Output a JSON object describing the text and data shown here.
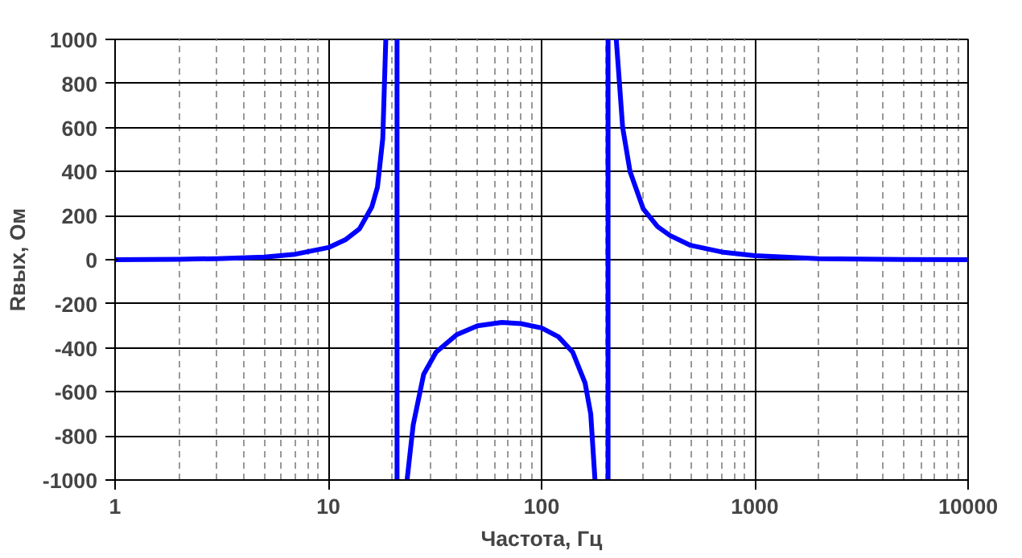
{
  "chart_data": {
    "type": "line",
    "xlabel": "Частота, Гц",
    "ylabel": "Rвых, Ом",
    "log": "x",
    "grid": true,
    "marker": "none",
    "line_style": "solid",
    "xlim": [
      1,
      10000
    ],
    "xticks": [
      1,
      10,
      100,
      1000,
      10000
    ],
    "ylim": [
      -1000,
      1000
    ],
    "yticks": [
      -1000,
      -800,
      -600,
      -400,
      -200,
      0,
      200,
      400,
      600,
      800,
      1000
    ],
    "series": [
      {
        "color": "#0000ff",
        "x": [
          1,
          2,
          3,
          5,
          7,
          10,
          12,
          14,
          16,
          17,
          18,
          18.6
        ],
        "values": [
          0,
          2,
          5,
          12,
          25,
          55,
          90,
          140,
          240,
          330,
          550,
          1000
        ]
      },
      {
        "color": "#0000ff",
        "x": [
          21,
          21
        ],
        "values": [
          1000,
          -1000
        ]
      },
      {
        "color": "#0000ff",
        "x": [
          23.4,
          25,
          28,
          32,
          40,
          50,
          65,
          80,
          100,
          120,
          140,
          160,
          170,
          178
        ],
        "values": [
          -1000,
          -750,
          -520,
          -420,
          -340,
          -300,
          -285,
          -290,
          -310,
          -350,
          -420,
          -560,
          -700,
          -1000
        ]
      },
      {
        "color": "#0000ff",
        "x": [
          205,
          205
        ],
        "values": [
          -1000,
          1000
        ]
      },
      {
        "color": "#0000ff",
        "x": [
          224,
          240,
          260,
          300,
          350,
          400,
          500,
          700,
          1000,
          2000,
          5000,
          10000
        ],
        "values": [
          1000,
          600,
          400,
          230,
          150,
          110,
          65,
          35,
          18,
          5,
          1,
          0
        ]
      }
    ]
  }
}
